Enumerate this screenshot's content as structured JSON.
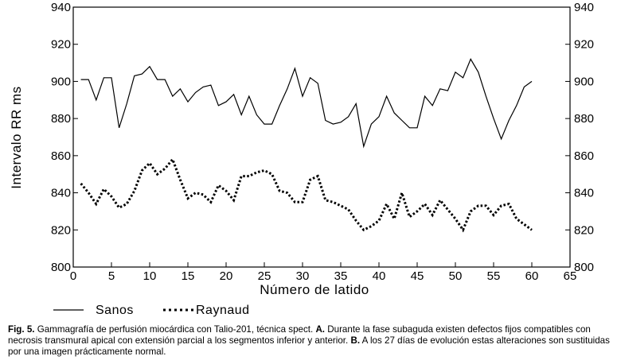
{
  "chart_data": {
    "type": "line",
    "title": "",
    "xlabel": "Número de latido",
    "ylabel": "Intervalo RR ms",
    "xlim": [
      0,
      65
    ],
    "ylim": [
      800,
      940
    ],
    "xticks": [
      0,
      5,
      10,
      15,
      20,
      25,
      30,
      35,
      40,
      45,
      50,
      55,
      60,
      65
    ],
    "yticks": [
      800,
      820,
      840,
      860,
      880,
      900,
      920,
      940
    ],
    "grid": false,
    "legend_position": "bottom-left",
    "series": [
      {
        "name": "Sanos",
        "style": "solid",
        "x": [
          1,
          2,
          3,
          4,
          5,
          6,
          7,
          8,
          9,
          10,
          11,
          12,
          13,
          14,
          15,
          16,
          17,
          18,
          19,
          20,
          21,
          22,
          23,
          24,
          25,
          26,
          27,
          28,
          29,
          30,
          31,
          32,
          33,
          34,
          35,
          36,
          37,
          38,
          39,
          40,
          41,
          42,
          43,
          44,
          45,
          46,
          47,
          48,
          49,
          50,
          51,
          52,
          53,
          54,
          55,
          56,
          57,
          58,
          59,
          60
        ],
        "values": [
          901,
          901,
          890,
          902,
          902,
          875,
          888,
          903,
          904,
          908,
          901,
          901,
          892,
          896,
          889,
          894,
          897,
          898,
          887,
          889,
          893,
          882,
          892,
          882,
          877,
          877,
          887,
          896,
          907,
          892,
          902,
          899,
          879,
          877,
          878,
          881,
          888,
          865,
          877,
          881,
          892,
          883,
          879,
          875,
          875,
          892,
          887,
          896,
          895,
          905,
          902,
          912,
          905,
          892,
          880,
          869,
          879,
          887,
          897,
          900
        ]
      },
      {
        "name": "Raynaud",
        "style": "dotted",
        "x": [
          1,
          2,
          3,
          4,
          5,
          6,
          7,
          8,
          9,
          10,
          11,
          12,
          13,
          14,
          15,
          16,
          17,
          18,
          19,
          20,
          21,
          22,
          23,
          24,
          25,
          26,
          27,
          28,
          29,
          30,
          31,
          32,
          33,
          34,
          35,
          36,
          37,
          38,
          39,
          40,
          41,
          42,
          43,
          44,
          45,
          46,
          47,
          48,
          49,
          50,
          51,
          52,
          53,
          54,
          55,
          56,
          57,
          58,
          59,
          60
        ],
        "values": [
          845,
          840,
          834,
          842,
          838,
          832,
          834,
          841,
          852,
          856,
          850,
          853,
          858,
          847,
          837,
          840,
          839,
          835,
          844,
          841,
          836,
          849,
          849,
          851,
          852,
          850,
          841,
          840,
          835,
          835,
          847,
          849,
          836,
          835,
          833,
          831,
          825,
          820,
          822,
          825,
          834,
          826,
          840,
          827,
          830,
          834,
          828,
          836,
          831,
          826,
          820,
          830,
          833,
          833,
          828,
          833,
          834,
          826,
          823,
          820
        ]
      }
    ]
  },
  "caption": {
    "fig_label": "Fig. 5.",
    "part1": " Gammagrafía de perfusión miocárdica con Talio-201, técnica spect. ",
    "label_a": "A.",
    "part2": " Durante la fase subaguda existen defectos fijos compatibles con necrosis transmural apical con extensión parcial a los segmentos inferior y anterior. ",
    "label_b": "B.",
    "part3": " A los 27 días de evolución estas alteraciones son sustituidas por una imagen prácticamente normal."
  }
}
